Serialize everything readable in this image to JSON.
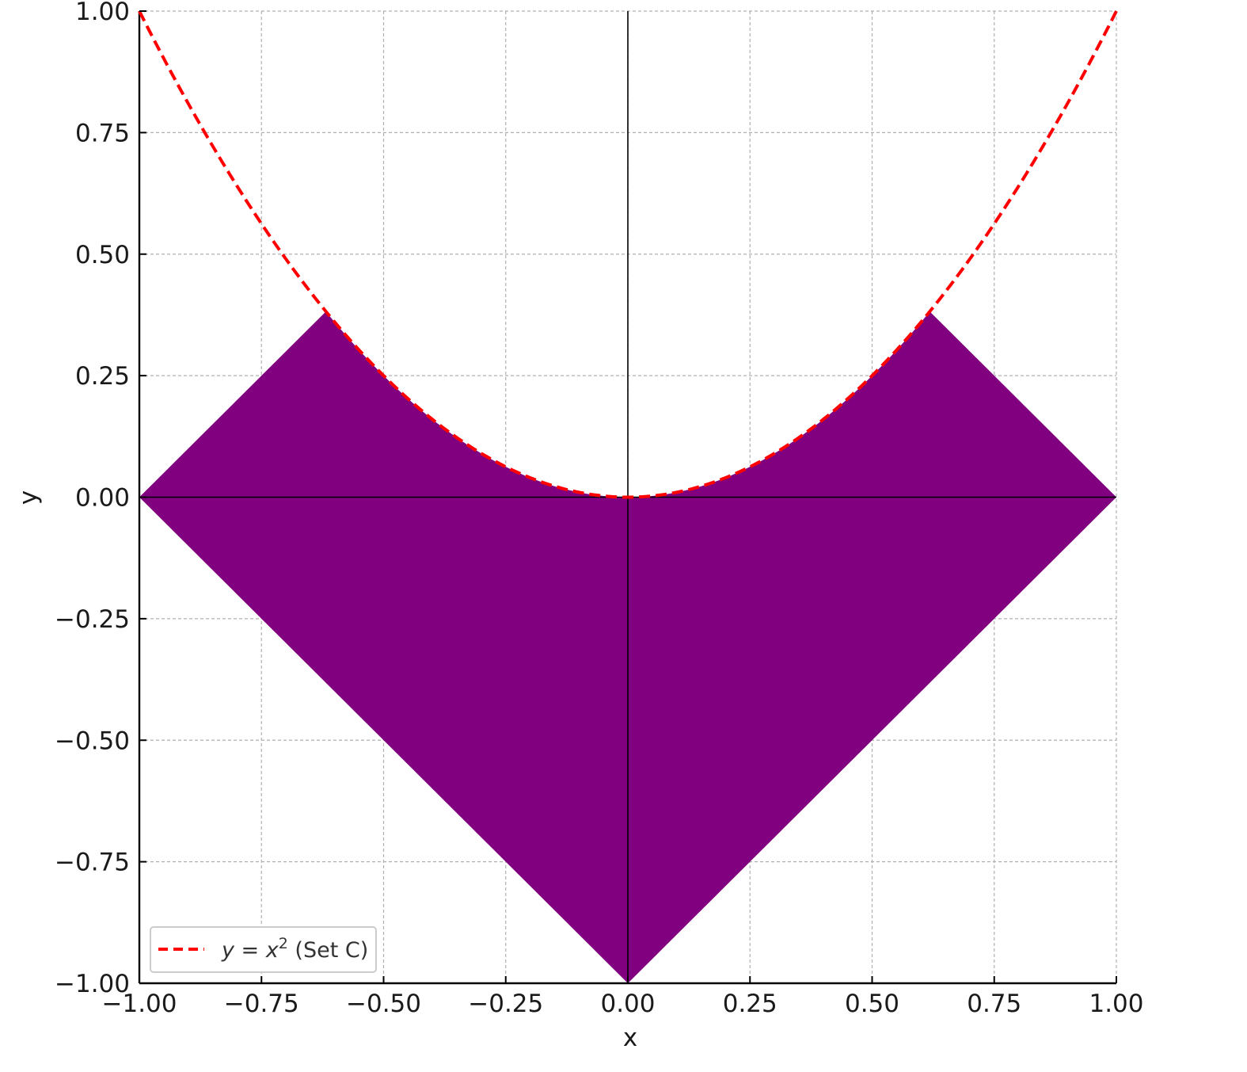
{
  "chart_data": {
    "type": "area",
    "title": "",
    "xlabel": "x",
    "ylabel": "y",
    "xlim": [
      -1.0,
      1.0
    ],
    "ylim": [
      -1.0,
      1.0
    ],
    "grid": true,
    "x_ticks": [
      -1.0,
      -0.75,
      -0.5,
      -0.25,
      0.0,
      0.25,
      0.5,
      0.75,
      1.0
    ],
    "y_ticks": [
      -1.0,
      -0.75,
      -0.5,
      -0.25,
      0.0,
      0.25,
      0.5,
      0.75,
      1.0
    ],
    "x_tick_labels": [
      "−1.00",
      "−0.75",
      "−0.50",
      "−0.25",
      "0.00",
      "0.25",
      "0.50",
      "0.75",
      "1.00"
    ],
    "y_tick_labels": [
      "−1.00",
      "−0.75",
      "−0.50",
      "−0.25",
      "0.00",
      "0.25",
      "0.50",
      "0.75",
      "1.00"
    ],
    "region": {
      "color": "#800080",
      "description_points": [
        [
          -1.0,
          0.0
        ],
        [
          -0.618,
          0.382
        ],
        [
          0.0,
          0.0
        ],
        [
          0.618,
          0.382
        ],
        [
          1.0,
          0.0
        ],
        [
          0.0,
          -1.0
        ]
      ]
    },
    "series": [
      {
        "name": "y = x² (Set C)",
        "function": "x^2",
        "x_range": [
          -1.0,
          1.0
        ],
        "color": "#ff0000",
        "style": "dashed"
      }
    ],
    "legend": {
      "position": "lower-left",
      "entries": [
        {
          "prefix": "y = x",
          "superscript": "2",
          "suffix": " (Set C)"
        }
      ]
    }
  }
}
